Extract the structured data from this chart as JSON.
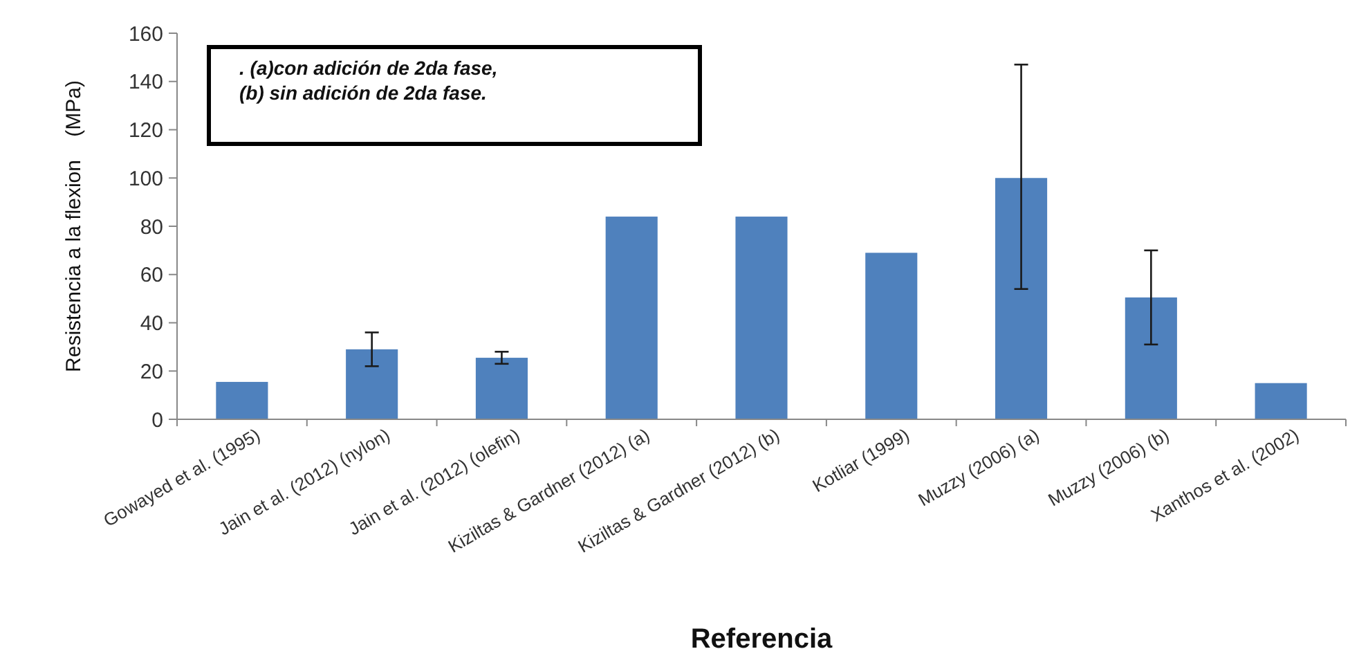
{
  "chart_data": {
    "type": "bar",
    "ylabel": "Resistencia a la flexion    (MPa)",
    "xlabel": "Referencia",
    "categories": [
      "Gowayed et al. (1995)",
      "Jain et al. (2012) (nylon)",
      "Jain et al. (2012) (olefin)",
      "Kiziltas & Gardner (2012) (a)",
      "Kiziltas & Gardner (2012) (b)",
      "Kotliar (1999)",
      "Muzzy (2006) (a)",
      "Muzzy (2006) (b)",
      "Xanthos et  al. (2002)"
    ],
    "values": [
      15.5,
      29,
      25.5,
      84,
      84,
      69,
      100,
      50.5,
      15
    ],
    "errors": [
      null,
      [
        22,
        36
      ],
      [
        23,
        28
      ],
      null,
      null,
      null,
      [
        54,
        147
      ],
      [
        31,
        70
      ],
      null
    ],
    "color": "#4f81bd",
    "ylim": [
      0,
      160
    ],
    "yticks": [
      0,
      20,
      40,
      60,
      80,
      100,
      120,
      140,
      160
    ],
    "grid": false,
    "annotations": [
      ". (a)con adición de 2da fase,",
      "(b) sin adición de 2da fase."
    ]
  }
}
